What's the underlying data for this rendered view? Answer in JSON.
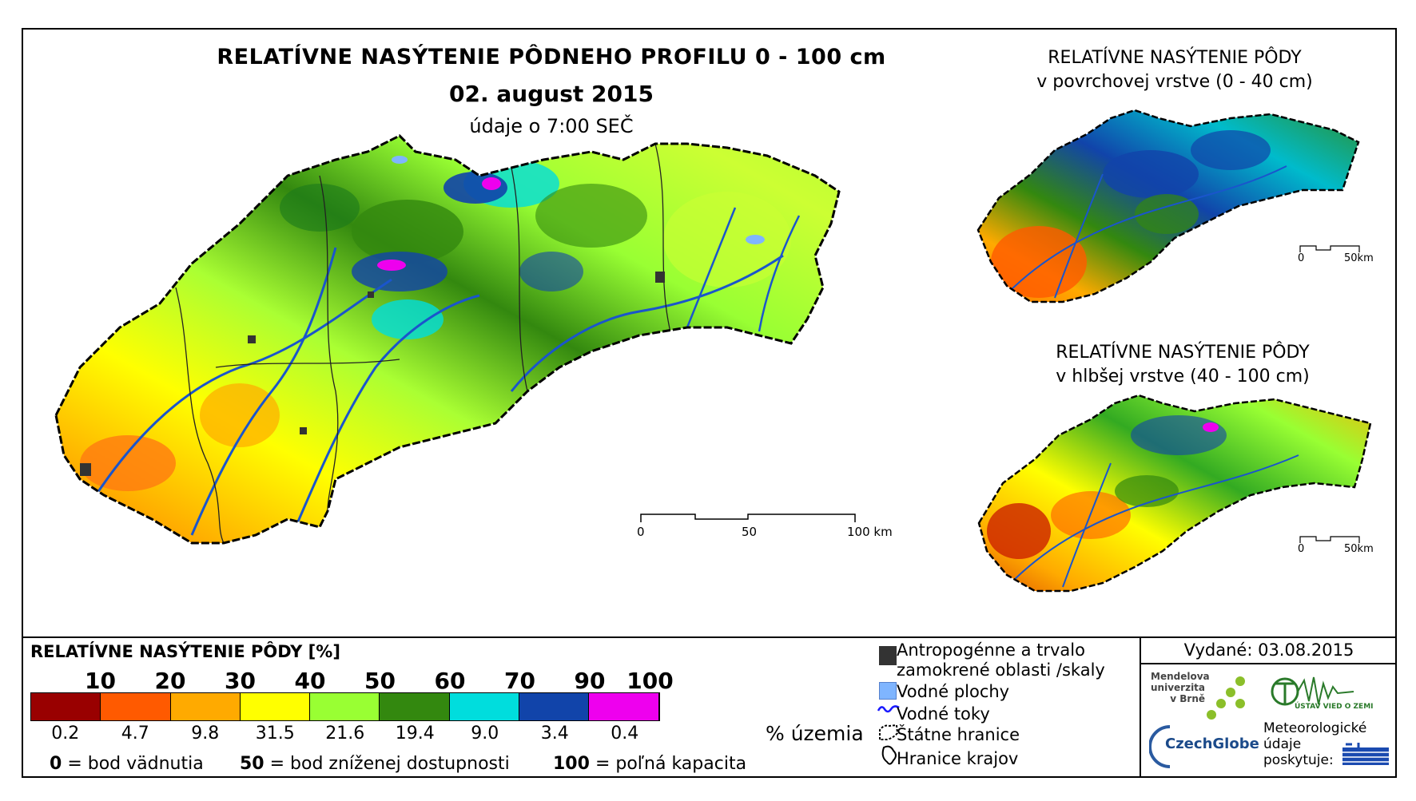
{
  "header": {
    "title": "RELATÍVNE NASÝTENIE PÔDNEHO PROFILU 0 - 100 cm",
    "date": "02. august 2015",
    "time_note": "údaje o 7:00 SEČ"
  },
  "insets": {
    "top": {
      "title_line1": "RELATÍVNE NASÝTENIE PÔDY",
      "title_line2": "v povrchovej vrstve (0 - 40 cm)",
      "scale_0": "0",
      "scale_50": "50km"
    },
    "bottom": {
      "title_line1": "RELATÍVNE NASÝTENIE PÔDY",
      "title_line2": "v hlbšej vrstve (40 - 100 cm)",
      "scale_0": "0",
      "scale_50": "50km"
    }
  },
  "main_scale": {
    "label_0": "0",
    "label_50": "50",
    "label_100": "100 km"
  },
  "legend": {
    "title": "RELATÍVNE NASÝTENIE PÔDY [%]",
    "ticks": [
      "10",
      "20",
      "30",
      "40",
      "50",
      "60",
      "70",
      "90",
      "100"
    ],
    "classes": [
      {
        "color": "#990000",
        "share": "0.2"
      },
      {
        "color": "#ff5a00",
        "share": "4.7"
      },
      {
        "color": "#ffaa00",
        "share": "9.8"
      },
      {
        "color": "#ffff00",
        "share": "31.5"
      },
      {
        "color": "#99ff33",
        "share": "21.6"
      },
      {
        "color": "#33880f",
        "share": "19.4"
      },
      {
        "color": "#00dddd",
        "share": "9.0"
      },
      {
        "color": "#1144aa",
        "share": "3.4"
      },
      {
        "color": "#ee00ee",
        "share": "0.4"
      }
    ],
    "share_unit": "% územia",
    "foot": {
      "n0": "0",
      "t0": "= bod vädnutia",
      "n50": "50",
      "t50": "= bod zníženej dostupnosti",
      "n100": "100",
      "t100": "= poľná kapacita"
    }
  },
  "map_legend": {
    "anthropogenic_1": "Antropogénne a trvalo",
    "anthropogenic_2": "zamokrené oblasti /skaly",
    "water_areas": "Vodné plochy",
    "streams": "Vodné toky",
    "state_border": "Štátne hranice",
    "region_border": "Hranice krajov",
    "colors": {
      "anthropogenic": "#333333",
      "water": "#7fb5ff",
      "streams": "#1a1aff"
    }
  },
  "issued": "Vydané: 03.08.2015",
  "logos": {
    "mendel": "Mendelova\nuniverzita\nv Brně",
    "czechglobe": "CzechGlobe",
    "ustav": "ÚSTAV VIED O ZEMI",
    "provided_1": "Meteorologické",
    "provided_2": "údaje",
    "provided_3": "poskytuje:",
    "shmu": "SHMÚ"
  }
}
